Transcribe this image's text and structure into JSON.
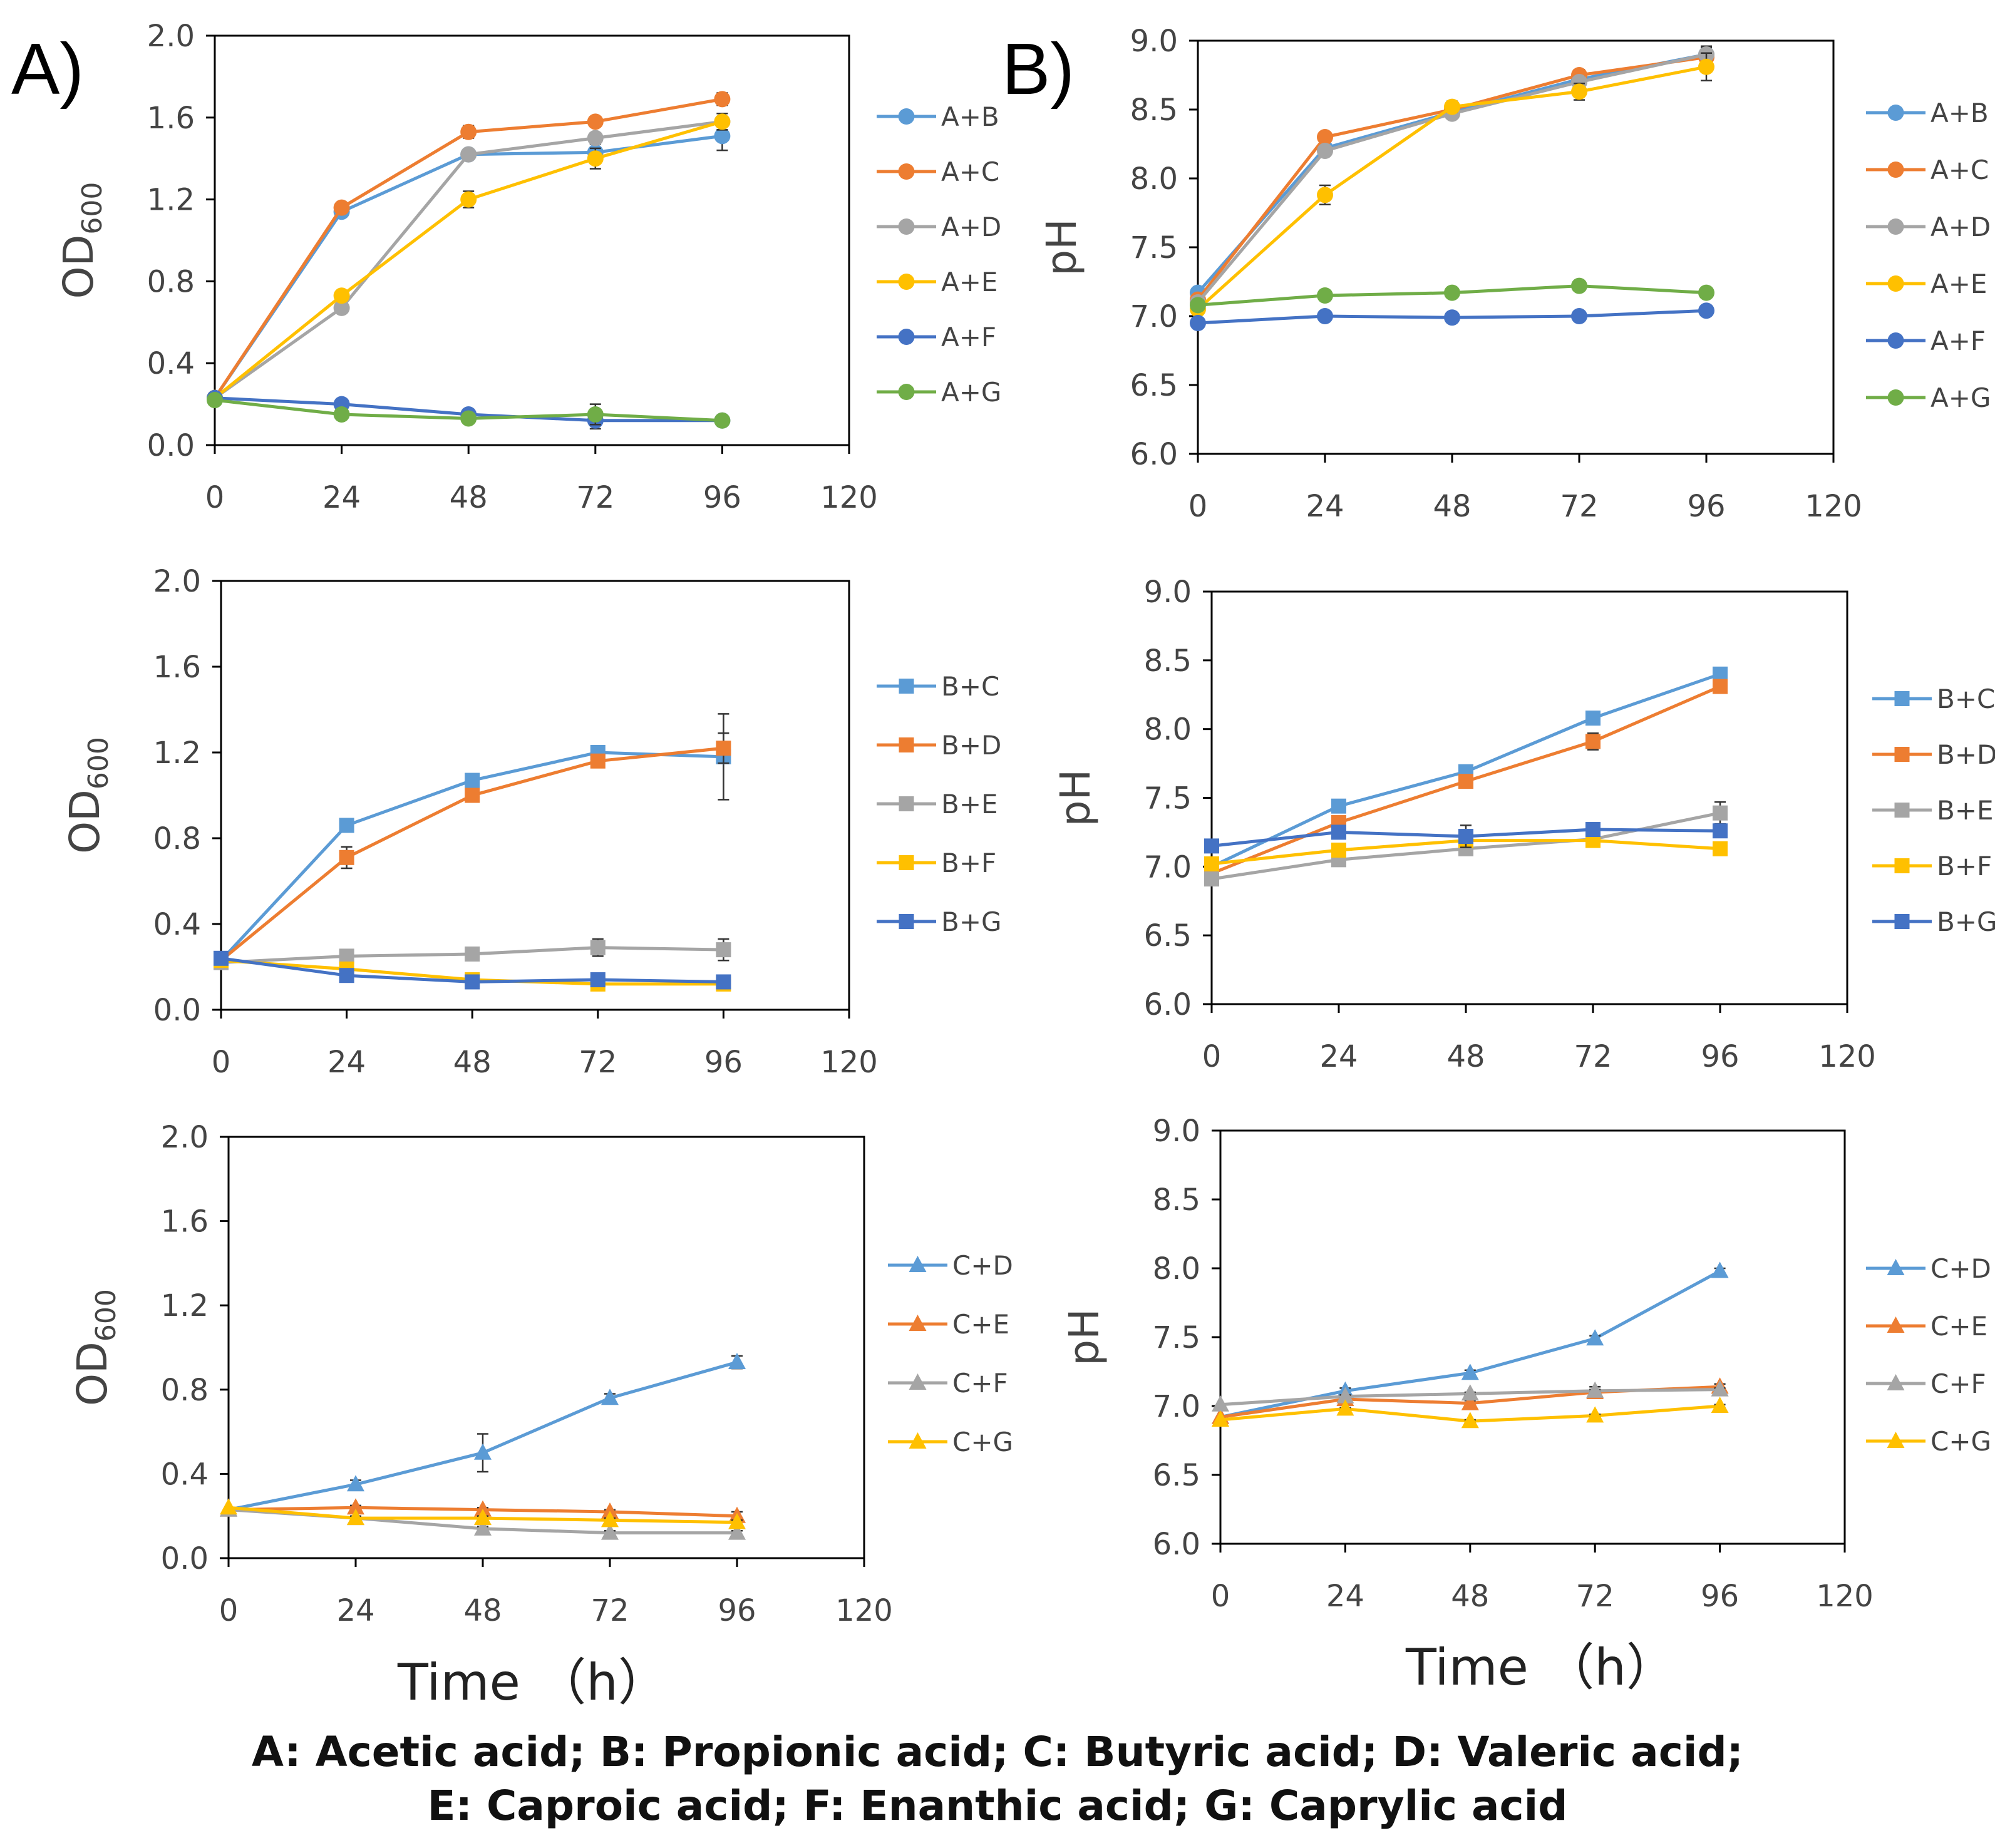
{
  "labels": {
    "panel_a": "A)",
    "panel_b": "B)",
    "time_left": "Time （h）",
    "time_right": "Time （h）",
    "caption_line1": "A: Acetic acid; B: Propionic acid; C: Butyric acid; D: Valeric acid;",
    "caption_line2": "E: Caproic acid; F: Enanthic acid; G: Caprylic acid"
  },
  "colors": {
    "blue": "#5B9BD5",
    "orange": "#ED7D31",
    "gray": "#A5A5A5",
    "yellow": "#FFC000",
    "darkblue": "#4472C4",
    "green": "#70AD47"
  },
  "chart_data": [
    {
      "id": "od-a",
      "type": "line",
      "marker": "circle",
      "title": "",
      "xlabel": "",
      "ylabel": "OD",
      "ylabel_sub": "600",
      "xlim": [
        0,
        120
      ],
      "ylim": [
        0,
        2.0
      ],
      "x": [
        0,
        24,
        48,
        72,
        96
      ],
      "xticks": [
        "0",
        "24",
        "48",
        "72",
        "96",
        "120"
      ],
      "yticks": [
        "0.0",
        "0.4",
        "0.8",
        "1.2",
        "1.6",
        "2.0"
      ],
      "series": [
        {
          "name": "A+B",
          "color": "#5B9BD5",
          "values": [
            0.23,
            1.14,
            1.42,
            1.43,
            1.51
          ],
          "errors": [
            0,
            0.02,
            0.02,
            0.04,
            0.07
          ]
        },
        {
          "name": "A+C",
          "color": "#ED7D31",
          "values": [
            0.23,
            1.16,
            1.53,
            1.58,
            1.69
          ],
          "errors": [
            0,
            0.02,
            0.03,
            0.02,
            0.03
          ]
        },
        {
          "name": "A+D",
          "color": "#A5A5A5",
          "values": [
            0.23,
            0.67,
            1.42,
            1.5,
            1.58
          ],
          "errors": [
            0,
            0.02,
            0.02,
            0.02,
            0.04
          ]
        },
        {
          "name": "A+E",
          "color": "#FFC000",
          "values": [
            0.23,
            0.73,
            1.2,
            1.4,
            1.58
          ],
          "errors": [
            0,
            0.02,
            0.04,
            0.05,
            0.04
          ]
        },
        {
          "name": "A+F",
          "color": "#4472C4",
          "values": [
            0.23,
            0.2,
            0.15,
            0.12,
            0.12
          ],
          "errors": [
            0,
            0.01,
            0.01,
            0.04,
            0.01
          ]
        },
        {
          "name": "A+G",
          "color": "#70AD47",
          "values": [
            0.22,
            0.15,
            0.13,
            0.15,
            0.12
          ],
          "errors": [
            0,
            0.01,
            0.01,
            0.05,
            0.01
          ]
        }
      ]
    },
    {
      "id": "ph-a",
      "type": "line",
      "marker": "circle",
      "title": "",
      "xlabel": "",
      "ylabel": "pH",
      "xlim": [
        0,
        120
      ],
      "ylim": [
        6.0,
        9.0
      ],
      "x": [
        0,
        24,
        48,
        72,
        96
      ],
      "xticks": [
        "0",
        "24",
        "48",
        "72",
        "96",
        "120"
      ],
      "yticks": [
        "6.0",
        "6.5",
        "7.0",
        "7.5",
        "8.0",
        "8.5",
        "9.0"
      ],
      "series": [
        {
          "name": "A+B",
          "color": "#5B9BD5",
          "values": [
            7.17,
            8.22,
            8.48,
            8.72,
            8.9
          ],
          "errors": [
            0,
            0.03,
            0.03,
            0.05,
            0.05
          ]
        },
        {
          "name": "A+C",
          "color": "#ED7D31",
          "values": [
            7.12,
            8.3,
            8.5,
            8.75,
            8.88
          ],
          "errors": [
            0,
            0.03,
            0.03,
            0.04,
            0.05
          ]
        },
        {
          "name": "A+D",
          "color": "#A5A5A5",
          "values": [
            7.1,
            8.2,
            8.47,
            8.7,
            8.9
          ],
          "errors": [
            0,
            0.03,
            0.03,
            0.04,
            0.06
          ]
        },
        {
          "name": "A+E",
          "color": "#FFC000",
          "values": [
            7.05,
            7.88,
            8.52,
            8.63,
            8.81
          ],
          "errors": [
            0,
            0.07,
            0.04,
            0.06,
            0.1
          ]
        },
        {
          "name": "A+F",
          "color": "#4472C4",
          "values": [
            6.95,
            7.0,
            6.99,
            7.0,
            7.04
          ],
          "errors": [
            0,
            0.01,
            0.01,
            0.01,
            0.01
          ]
        },
        {
          "name": "A+G",
          "color": "#70AD47",
          "values": [
            7.08,
            7.15,
            7.17,
            7.22,
            7.17
          ],
          "errors": [
            0,
            0.01,
            0.03,
            0.02,
            0.01
          ]
        }
      ]
    },
    {
      "id": "od-b",
      "type": "line",
      "marker": "square",
      "title": "",
      "xlabel": "",
      "ylabel": "OD",
      "ylabel_sub": "600",
      "xlim": [
        0,
        120
      ],
      "ylim": [
        0,
        2.0
      ],
      "x": [
        0,
        24,
        48,
        72,
        96
      ],
      "xticks": [
        "0",
        "24",
        "48",
        "72",
        "96",
        "120"
      ],
      "yticks": [
        "0.0",
        "0.4",
        "0.8",
        "1.2",
        "1.6",
        "2.0"
      ],
      "series": [
        {
          "name": "B+C",
          "color": "#5B9BD5",
          "values": [
            0.23,
            0.86,
            1.07,
            1.2,
            1.18
          ],
          "errors": [
            0,
            0.02,
            0.02,
            0.02,
            0.2
          ]
        },
        {
          "name": "B+D",
          "color": "#ED7D31",
          "values": [
            0.23,
            0.71,
            1.0,
            1.16,
            1.22
          ],
          "errors": [
            0,
            0.05,
            0.03,
            0.03,
            0.07
          ]
        },
        {
          "name": "B+E",
          "color": "#A5A5A5",
          "values": [
            0.22,
            0.25,
            0.26,
            0.29,
            0.28
          ],
          "errors": [
            0,
            0.01,
            0.02,
            0.04,
            0.05
          ]
        },
        {
          "name": "B+F",
          "color": "#FFC000",
          "values": [
            0.23,
            0.19,
            0.14,
            0.12,
            0.12
          ],
          "errors": [
            0,
            0.01,
            0.01,
            0.01,
            0.01
          ]
        },
        {
          "name": "B+G",
          "color": "#4472C4",
          "values": [
            0.24,
            0.16,
            0.13,
            0.14,
            0.13
          ],
          "errors": [
            0,
            0.01,
            0.01,
            0.02,
            0.01
          ]
        }
      ]
    },
    {
      "id": "ph-b",
      "type": "line",
      "marker": "square",
      "title": "",
      "xlabel": "",
      "ylabel": "pH",
      "xlim": [
        0,
        120
      ],
      "ylim": [
        6.0,
        9.0
      ],
      "x": [
        0,
        24,
        48,
        72,
        96
      ],
      "xticks": [
        "0",
        "24",
        "48",
        "72",
        "96",
        "120"
      ],
      "yticks": [
        "6.0",
        "6.5",
        "7.0",
        "7.5",
        "8.0",
        "8.5",
        "9.0"
      ],
      "series": [
        {
          "name": "B+C",
          "color": "#5B9BD5",
          "values": [
            7.0,
            7.44,
            7.69,
            8.08,
            8.4
          ],
          "errors": [
            0,
            0.02,
            0.02,
            0.03,
            0.02
          ]
        },
        {
          "name": "B+D",
          "color": "#ED7D31",
          "values": [
            6.95,
            7.32,
            7.62,
            7.91,
            8.31
          ],
          "errors": [
            0,
            0.02,
            0.03,
            0.06,
            0.04
          ]
        },
        {
          "name": "B+E",
          "color": "#A5A5A5",
          "values": [
            6.91,
            7.05,
            7.13,
            7.2,
            7.39
          ],
          "errors": [
            0,
            0.02,
            0.02,
            0.03,
            0.08
          ]
        },
        {
          "name": "B+F",
          "color": "#FFC000",
          "values": [
            7.02,
            7.12,
            7.19,
            7.19,
            7.13
          ],
          "errors": [
            0,
            0.02,
            0.02,
            0.02,
            0.03
          ]
        },
        {
          "name": "B+G",
          "color": "#4472C4",
          "values": [
            7.15,
            7.25,
            7.22,
            7.27,
            7.26
          ],
          "errors": [
            0,
            0.03,
            0.08,
            0.03,
            0.03
          ]
        }
      ]
    },
    {
      "id": "od-c",
      "type": "line",
      "marker": "triangle",
      "title": "",
      "xlabel": "",
      "ylabel": "OD",
      "ylabel_sub": "600",
      "xlim": [
        0,
        120
      ],
      "ylim": [
        0,
        2.0
      ],
      "x": [
        0,
        24,
        48,
        72,
        96
      ],
      "xticks": [
        "0",
        "24",
        "48",
        "72",
        "96",
        "120"
      ],
      "yticks": [
        "0.0",
        "0.4",
        "0.8",
        "1.2",
        "1.6",
        "2.0"
      ],
      "series": [
        {
          "name": "C+D",
          "color": "#5B9BD5",
          "values": [
            0.23,
            0.35,
            0.5,
            0.76,
            0.93
          ],
          "errors": [
            0,
            0.02,
            0.09,
            0.02,
            0.03
          ]
        },
        {
          "name": "C+E",
          "color": "#ED7D31",
          "values": [
            0.23,
            0.24,
            0.23,
            0.22,
            0.2
          ],
          "errors": [
            0,
            0.01,
            0.01,
            0.01,
            0.02
          ]
        },
        {
          "name": "C+F",
          "color": "#A5A5A5",
          "values": [
            0.23,
            0.19,
            0.14,
            0.12,
            0.12
          ],
          "errors": [
            0,
            0.01,
            0.01,
            0.01,
            0.01
          ]
        },
        {
          "name": "C+G",
          "color": "#FFC000",
          "values": [
            0.24,
            0.19,
            0.19,
            0.18,
            0.17
          ],
          "errors": [
            0,
            0.01,
            0.01,
            0.01,
            0.01
          ]
        }
      ]
    },
    {
      "id": "ph-c",
      "type": "line",
      "marker": "triangle",
      "title": "",
      "xlabel": "",
      "ylabel": "pH",
      "xlim": [
        0,
        120
      ],
      "ylim": [
        6.0,
        9.0
      ],
      "x": [
        0,
        24,
        48,
        72,
        96
      ],
      "xticks": [
        "0",
        "24",
        "48",
        "72",
        "96",
        "120"
      ],
      "yticks": [
        "6.0",
        "6.5",
        "7.0",
        "7.5",
        "8.0",
        "8.5",
        "9.0"
      ],
      "series": [
        {
          "name": "C+D",
          "color": "#5B9BD5",
          "values": [
            6.92,
            7.11,
            7.24,
            7.49,
            7.98
          ],
          "errors": [
            0,
            0.02,
            0.02,
            0.02,
            0.02
          ]
        },
        {
          "name": "C+E",
          "color": "#ED7D31",
          "values": [
            6.92,
            7.05,
            7.02,
            7.1,
            7.14
          ],
          "errors": [
            0,
            0.02,
            0.02,
            0.04,
            0.02
          ]
        },
        {
          "name": "C+F",
          "color": "#A5A5A5",
          "values": [
            7.01,
            7.07,
            7.09,
            7.11,
            7.12
          ],
          "errors": [
            0,
            0.01,
            0.01,
            0.01,
            0.01
          ]
        },
        {
          "name": "C+G",
          "color": "#FFC000",
          "values": [
            6.9,
            6.98,
            6.89,
            6.93,
            7.0
          ],
          "errors": [
            0,
            0.01,
            0.01,
            0.01,
            0.01
          ]
        }
      ]
    }
  ]
}
